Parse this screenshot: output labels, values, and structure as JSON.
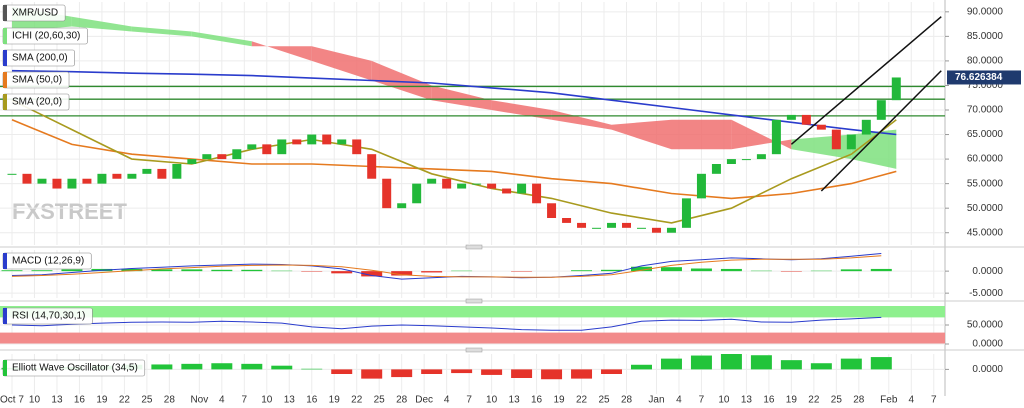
{
  "chart_data": [
    {
      "type": "candlestick",
      "name": "XMR/USD",
      "watermark": "FXSTREET",
      "xlim": [
        -1.6,
        124.5
      ],
      "xticks": [
        {
          "value": 0,
          "label": "Oct 7"
        },
        {
          "value": 3,
          "label": "10"
        },
        {
          "value": 6,
          "label": "13"
        },
        {
          "value": 9,
          "label": "16"
        },
        {
          "value": 12,
          "label": "19"
        },
        {
          "value": 15,
          "label": "22"
        },
        {
          "value": 18,
          "label": "25"
        },
        {
          "value": 21,
          "label": "28"
        },
        {
          "value": 25,
          "label": "Nov"
        },
        {
          "value": 28,
          "label": "4"
        },
        {
          "value": 31,
          "label": "7"
        },
        {
          "value": 34,
          "label": "10"
        },
        {
          "value": 37,
          "label": "13"
        },
        {
          "value": 40,
          "label": "16"
        },
        {
          "value": 43,
          "label": "19"
        },
        {
          "value": 46,
          "label": "22"
        },
        {
          "value": 49,
          "label": "25"
        },
        {
          "value": 52,
          "label": "28"
        },
        {
          "value": 55,
          "label": "Dec"
        },
        {
          "value": 58,
          "label": "4"
        },
        {
          "value": 61,
          "label": "7"
        },
        {
          "value": 64,
          "label": "10"
        },
        {
          "value": 67,
          "label": "13"
        },
        {
          "value": 70,
          "label": "16"
        },
        {
          "value": 73,
          "label": "19"
        },
        {
          "value": 76,
          "label": "22"
        },
        {
          "value": 79,
          "label": "25"
        },
        {
          "value": 82,
          "label": "28"
        },
        {
          "value": 86,
          "label": "Jan"
        },
        {
          "value": 89,
          "label": "4"
        },
        {
          "value": 92,
          "label": "7"
        },
        {
          "value": 95,
          "label": "10"
        },
        {
          "value": 98,
          "label": "13"
        },
        {
          "value": 101,
          "label": "16"
        },
        {
          "value": 104,
          "label": "19"
        },
        {
          "value": 107,
          "label": "22"
        },
        {
          "value": 110,
          "label": "25"
        },
        {
          "value": 113,
          "label": "28"
        },
        {
          "value": 117,
          "label": "Feb"
        },
        {
          "value": 120,
          "label": "4"
        },
        {
          "value": 123,
          "label": "7"
        }
      ],
      "ylim": [
        42.5,
        92
      ],
      "yticks": [
        {
          "value": 45,
          "label": "45.0000"
        },
        {
          "value": 50,
          "label": "50.0000"
        },
        {
          "value": 55,
          "label": "55.0000"
        },
        {
          "value": 60,
          "label": "60.0000"
        },
        {
          "value": 65,
          "label": "65.0000"
        },
        {
          "value": 70,
          "label": "70.0000"
        },
        {
          "value": 75,
          "label": "75.0000"
        },
        {
          "value": 80,
          "label": "80.0000"
        },
        {
          "value": 85,
          "label": "85.0000"
        },
        {
          "value": 90,
          "label": "90.0000"
        }
      ],
      "up_color": "#22b83a",
      "down_color": "#e5332a",
      "x": [
        0,
        2,
        4,
        6,
        8,
        10,
        12,
        14,
        16,
        18,
        20,
        22,
        24,
        26,
        28,
        30,
        32,
        34,
        36,
        38,
        40,
        42,
        44,
        46,
        48,
        50,
        52,
        54,
        56,
        58,
        60,
        62,
        64,
        66,
        68,
        70,
        72,
        74,
        76,
        78,
        80,
        82,
        84,
        86,
        88,
        90,
        92,
        94,
        96,
        98,
        100,
        102,
        104,
        106,
        108,
        110,
        112,
        114,
        116,
        118
      ],
      "close": [
        57,
        55,
        56,
        54,
        56,
        55,
        57,
        56,
        57,
        58,
        56,
        59,
        60,
        61,
        60,
        62,
        63,
        61,
        64,
        63,
        65,
        63,
        64,
        61,
        56,
        50,
        51,
        55,
        56,
        54,
        55,
        55,
        54,
        53,
        55,
        51,
        48,
        47,
        46,
        46,
        47,
        46,
        46,
        45,
        46,
        52,
        57,
        59,
        60,
        60,
        61,
        68,
        69,
        67,
        66,
        62,
        65,
        68,
        72,
        76.626384
      ],
      "cloud": {
        "name": "ICHI (20,60,30)",
        "up_color": "#7ee07e",
        "down_color": "#f07070",
        "span_a": [
          91,
          89,
          87,
          86,
          84,
          80,
          76,
          72,
          70,
          68,
          66,
          62,
          62,
          64,
          65,
          66
        ],
        "span_b": [
          86,
          87,
          86,
          85,
          83,
          83,
          80,
          75,
          72,
          70,
          67,
          68,
          68,
          62,
          60,
          58
        ]
      },
      "overlay_x": [
        0,
        8,
        16,
        24,
        32,
        40,
        48,
        56,
        64,
        72,
        80,
        88,
        96,
        104,
        112,
        118
      ],
      "overlays": [
        {
          "name": "SMA (200,0)",
          "color": "#2a3ccc",
          "values": [
            78,
            77.8,
            77.5,
            77.3,
            77,
            76.5,
            76,
            75.5,
            74.5,
            73.5,
            72,
            70.5,
            69,
            67.5,
            66,
            65
          ]
        },
        {
          "name": "SMA (50,0)",
          "color": "#e57a1f",
          "values": [
            68,
            63,
            61,
            60,
            59,
            59,
            58.5,
            58,
            57.5,
            56,
            55,
            53,
            52,
            53,
            55,
            57.5
          ]
        },
        {
          "name": "SMA (20,0)",
          "color": "#a89a1e",
          "values": [
            72,
            66,
            60,
            59,
            62,
            64,
            62,
            57,
            54,
            52,
            49,
            47,
            50,
            56,
            61,
            68
          ]
        }
      ],
      "levels": {
        "color": "#2f8a2f",
        "values": [
          74.8,
          72.2,
          68.8
        ]
      },
      "trendlines": {
        "color": "#111111",
        "lines": [
          {
            "x": [
              104,
              124
            ],
            "y": [
              63,
              89
            ]
          },
          {
            "x": [
              108,
              124
            ],
            "y": [
              53.5,
              78
            ]
          }
        ]
      }
    },
    {
      "type": "macd",
      "name": "MACD (12,26,9)",
      "ylim": [
        -6.1,
        4.8
      ],
      "yticks": [
        {
          "value": 0,
          "label": "0.0000"
        },
        {
          "value": -5,
          "label": "-5.0000"
        }
      ],
      "x": [
        0,
        4,
        8,
        12,
        16,
        20,
        24,
        28,
        32,
        36,
        40,
        44,
        48,
        52,
        56,
        60,
        64,
        68,
        72,
        76,
        80,
        84,
        88,
        92,
        96,
        100,
        104,
        108,
        112,
        116
      ],
      "series": [
        {
          "color": "#2a3ccc",
          "values": [
            -1,
            -0.8,
            -0.3,
            0.2,
            0.6,
            0.9,
            1.2,
            1.4,
            1.6,
            1.5,
            1.2,
            0.5,
            -1,
            -1.8,
            -1.5,
            -1.2,
            -1.3,
            -1.5,
            -1.4,
            -1,
            -0.5,
            1.2,
            2.2,
            2.6,
            3,
            2.8,
            2.6,
            2.8,
            3.4,
            4
          ]
        },
        {
          "color": "#e57a1f",
          "values": [
            -1.2,
            -1,
            -0.7,
            -0.3,
            0.1,
            0.5,
            0.8,
            1.1,
            1.3,
            1.4,
            1.3,
            1,
            0.2,
            -0.8,
            -1.2,
            -1.3,
            -1.3,
            -1.4,
            -1.4,
            -1.2,
            -0.8,
            0.2,
            1.3,
            2,
            2.5,
            2.7,
            2.7,
            2.7,
            3,
            3.5
          ]
        }
      ],
      "histogram": {
        "up_color": "#22c43a",
        "down_color": "#e5332a",
        "values": [
          0.2,
          0.2,
          0.4,
          0.5,
          0.5,
          0.4,
          0.4,
          0.3,
          0.3,
          0.1,
          -0.1,
          -0.5,
          -1.2,
          -1,
          -0.3,
          0.1,
          0,
          -0.1,
          0,
          0.2,
          0.3,
          1,
          0.9,
          0.6,
          0.5,
          0.1,
          -0.1,
          0.1,
          0.4,
          0.5
        ]
      }
    },
    {
      "type": "rsi",
      "name": "RSI (14,70,30,1)",
      "ylim": [
        0,
        100
      ],
      "yticks": [
        {
          "value": 50,
          "label": "50.0000"
        },
        {
          "value": 0,
          "label": "0.0000"
        }
      ],
      "bands": [
        {
          "from": 70,
          "to": 100,
          "color": "#8ef08e"
        },
        {
          "from": 0,
          "to": 30,
          "color": "#f28b8b"
        }
      ],
      "x": [
        0,
        4,
        8,
        12,
        16,
        20,
        24,
        28,
        32,
        36,
        40,
        44,
        48,
        52,
        56,
        60,
        64,
        68,
        72,
        76,
        80,
        84,
        88,
        92,
        96,
        100,
        104,
        108,
        112,
        116
      ],
      "color": "#2a3ccc",
      "values": [
        50,
        48,
        52,
        55,
        57,
        58,
        57,
        60,
        58,
        55,
        45,
        40,
        47,
        50,
        48,
        45,
        42,
        38,
        36,
        36,
        45,
        60,
        63,
        62,
        65,
        58,
        57,
        63,
        66,
        70
      ]
    },
    {
      "type": "bar",
      "name": "Elliott Wave Oscillator (34,5)",
      "ylim": [
        -8,
        5
      ],
      "yticks": [
        {
          "value": 0,
          "label": "0.0000"
        }
      ],
      "up_color": "#22c43a",
      "down_color": "#e5332a",
      "x": [
        0,
        4,
        8,
        12,
        16,
        20,
        24,
        28,
        32,
        36,
        40,
        44,
        48,
        52,
        56,
        60,
        64,
        68,
        72,
        76,
        80,
        84,
        88,
        92,
        96,
        100,
        104,
        108,
        112,
        116
      ],
      "values": [
        0.5,
        0.3,
        0.8,
        1.2,
        1.5,
        1.6,
        1.8,
        2,
        1.8,
        1.2,
        0.2,
        -1.5,
        -3,
        -2.5,
        -1.5,
        -1.2,
        -1.8,
        -2.8,
        -3.2,
        -3,
        -1.5,
        1.5,
        3.5,
        4.5,
        5,
        4.6,
        3,
        2,
        3.5,
        4
      ]
    }
  ]
}
